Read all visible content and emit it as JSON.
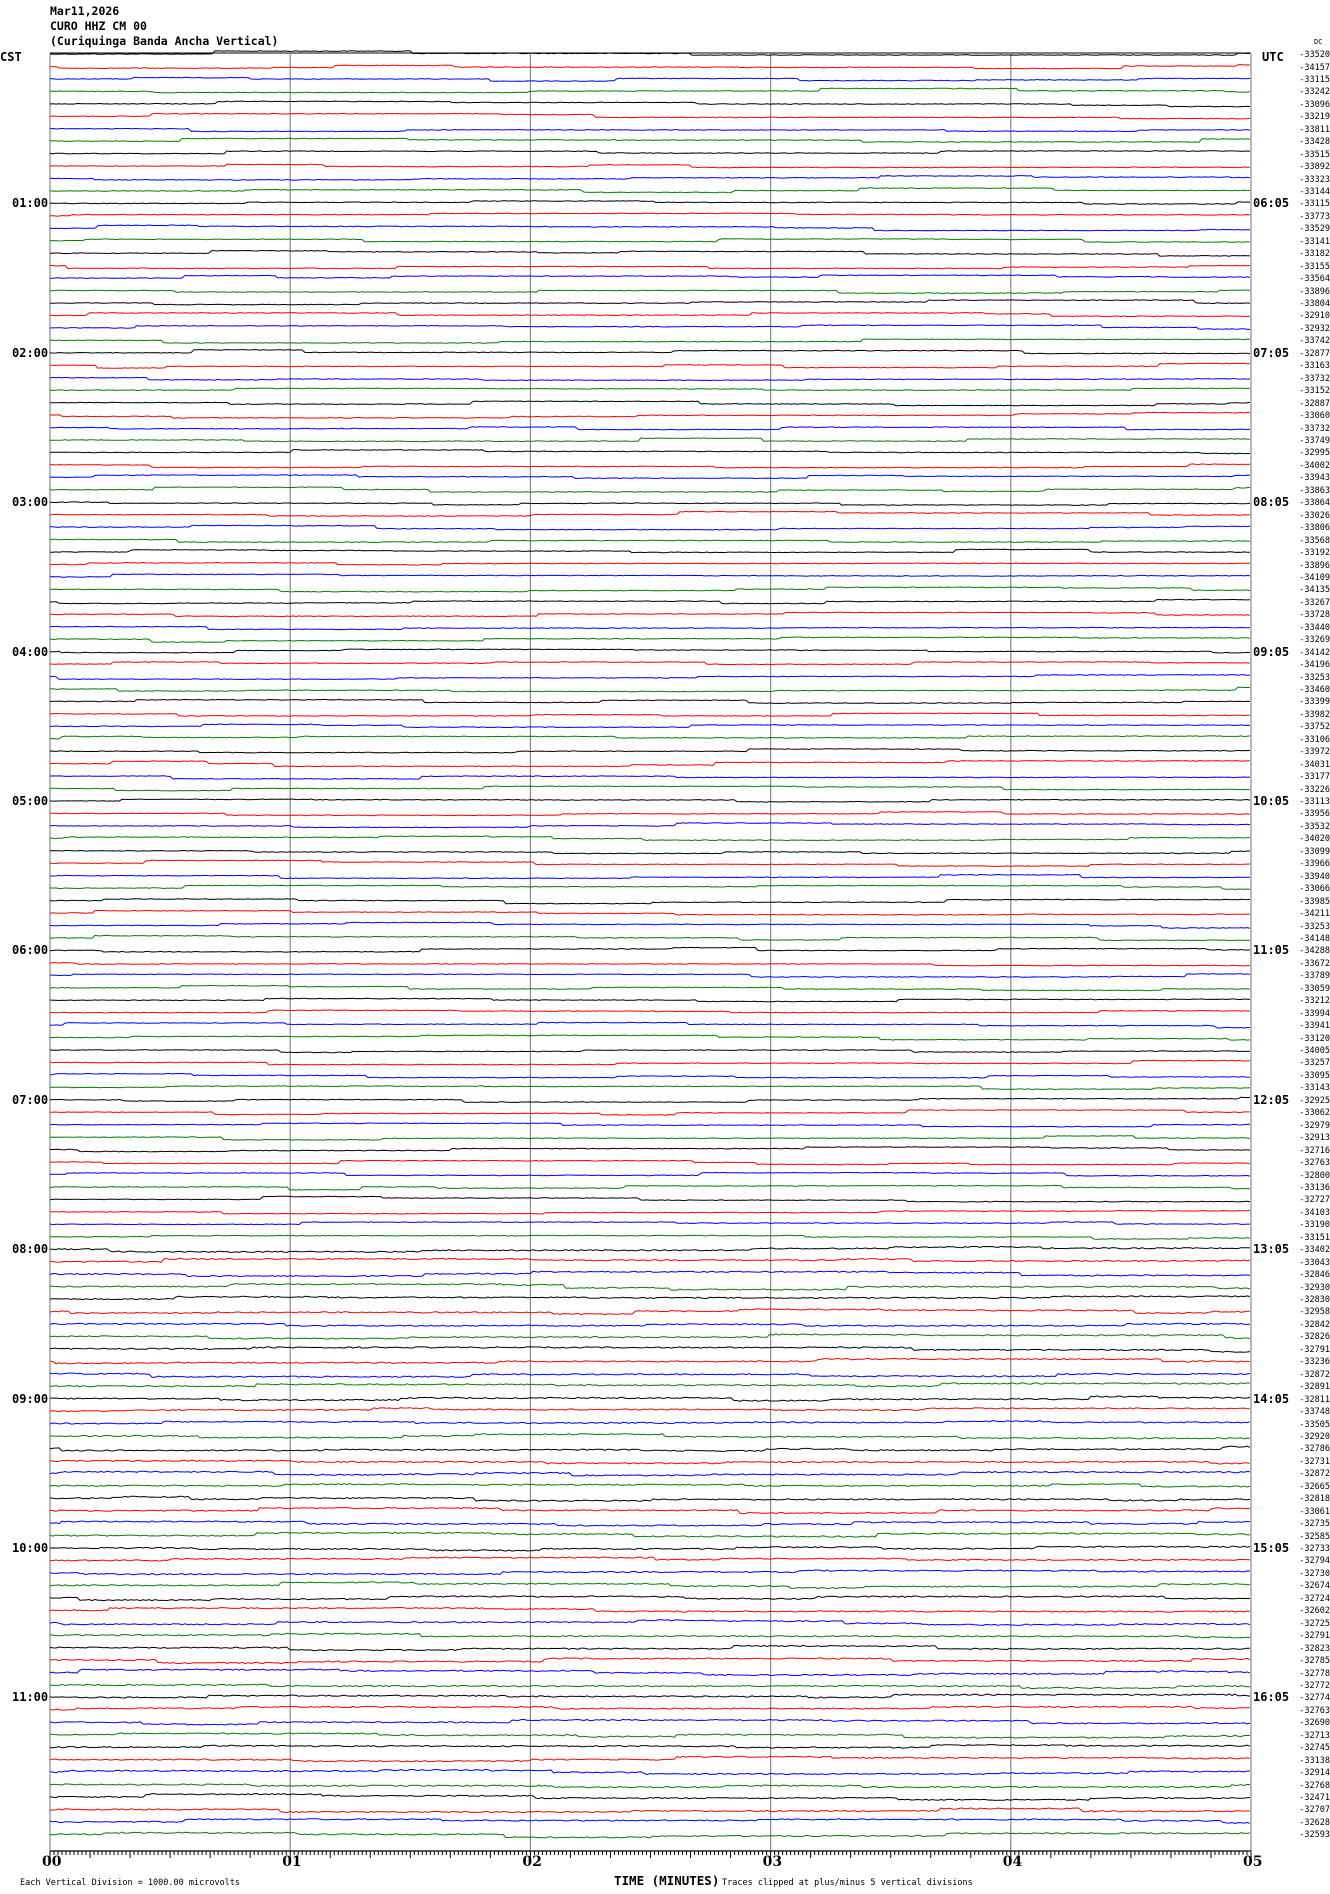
{
  "header": {
    "date": "Mar11,2026",
    "station": "CURO HHZ CM 00",
    "description": "(Curiquinga Banda Ancha Vertical)"
  },
  "left_timezone": "CST",
  "right_timezone": "UTC",
  "dc_label": "DC",
  "left_hour_labels": [
    "01:00",
    "02:00",
    "03:00",
    "04:00",
    "05:00",
    "06:00",
    "07:00",
    "08:00",
    "09:00",
    "10:00",
    "11:00"
  ],
  "right_hour_labels": [
    "06:05",
    "07:05",
    "08:05",
    "09:05",
    "10:05",
    "11:05",
    "12:05",
    "13:05",
    "14:05",
    "15:05",
    "16:05"
  ],
  "trace_colors": [
    "#000000",
    "#ff0000",
    "#0000ff",
    "#008000"
  ],
  "trace_offsets": [
    "-33520",
    "-34157",
    "-33115",
    "-33242",
    "-33096",
    "-33219",
    "-33811",
    "-33428",
    "-33515",
    "-33892",
    "-33323",
    "-33144",
    "-33115",
    "-33773",
    "-33529",
    "-33141",
    "-33182",
    "-33155",
    "-33564",
    "-33896",
    "-33804",
    "-32910",
    "-32932",
    "-33742",
    "-32877",
    "-33163",
    "-33732",
    "-33152",
    "-32887",
    "-33060",
    "-33732",
    "-33749",
    "-32995",
    "-34002",
    "-33943",
    "-33863",
    "-33864",
    "-33026",
    "-33806",
    "-33568",
    "-33192",
    "-33896",
    "-34109",
    "-34135",
    "-33267",
    "-33728",
    "-33440",
    "-33269",
    "-34142",
    "-34196",
    "-33253",
    "-33460",
    "-33399",
    "-33982",
    "-33752",
    "-33106",
    "-33972",
    "-34031",
    "-33177",
    "-33226",
    "-33113",
    "-33956",
    "-33532",
    "-34020",
    "-33099",
    "-33966",
    "-33940",
    "-33066",
    "-33985",
    "-34211",
    "-33253",
    "-34148",
    "-34288",
    "-33672",
    "-33789",
    "-33059",
    "-33212",
    "-33994",
    "-33941",
    "-33120",
    "-34005",
    "-33257",
    "-33095",
    "-33143",
    "-32925",
    "-33062",
    "-32979",
    "-32913",
    "-32716",
    "-32763",
    "-32800",
    "-33136",
    "-32727",
    "-34103",
    "-33190",
    "-33151",
    "-33402",
    "-33043",
    "-32846",
    "-32930",
    "-32830",
    "-32958",
    "-32842",
    "-32826",
    "-32791",
    "-33236",
    "-32872",
    "-32891",
    "-32811",
    "-33748",
    "-33505",
    "-32920",
    "-32786",
    "-32731",
    "-32872",
    "-32665",
    "-32818",
    "-33061",
    "-32735",
    "-32585",
    "-32733",
    "-32794",
    "-32730",
    "-32674",
    "-32724",
    "-32602",
    "-32725",
    "-32791",
    "-32823",
    "-32785",
    "-32778",
    "-32772",
    "-32774",
    "-32763",
    "-32690",
    "-32713",
    "-32745",
    "-33138",
    "-32914",
    "-32768",
    "-32471",
    "-32707",
    "-32628",
    "-32593"
  ],
  "x_axis": {
    "title": "TIME (MINUTES)",
    "tick_labels": [
      "00",
      "01",
      "02",
      "03",
      "04",
      "05"
    ],
    "range_minutes": [
      0,
      5
    ]
  },
  "footer": {
    "scale_note": "Each Vertical Division = 1000.00 microvolts",
    "clip_note": "Traces clipped at plus/minus 5 vertical divisions"
  },
  "chart_data": {
    "type": "line",
    "title": "CURO HHZ CM 00",
    "xlabel": "TIME (MINUTES)",
    "xlim": [
      0,
      5
    ],
    "rows": 144,
    "minutes_per_row": 5,
    "grid": "vertical lines at each minute"
  }
}
